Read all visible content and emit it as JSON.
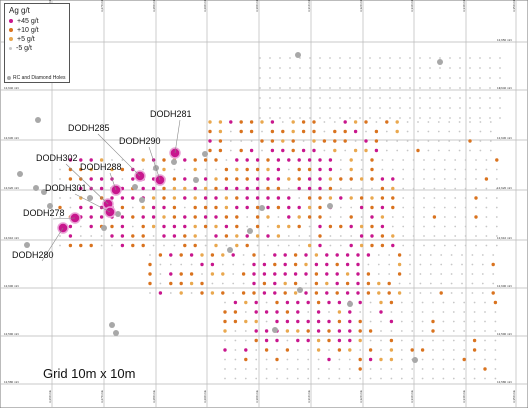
{
  "legend": {
    "title": "Ag g/t",
    "items": [
      {
        "label": "+45 g/t",
        "color": "#c8168d"
      },
      {
        "label": "+10 g/t",
        "color": "#d9731f"
      },
      {
        "label": "+5 g/t",
        "color": "#e9a84f"
      },
      {
        "label": "-5 g/t",
        "color": "#c7c7c7"
      }
    ],
    "holes_label": "RC and Diamond Holes",
    "holes_color": "#a8a8a8"
  },
  "grid_caption": "Grid 10m x 10m",
  "northing_labels": [
    "13,650 mN",
    "13,640 mN",
    "13,630 mN",
    "13,620 mN",
    "13,610 mN",
    "13,600 mN",
    "13,590 mN",
    "13,580 mN"
  ],
  "easting_labels": [
    "3,260 mE",
    "3,270 mE",
    "3,280 mE",
    "3,290 mE",
    "3,300 mE",
    "3,310 mE",
    "3,320 mE",
    "3,330 mE",
    "3,340 mE",
    "3,350 mE"
  ],
  "holes": [
    {
      "id": "DODH281"
    },
    {
      "id": "DODH285"
    },
    {
      "id": "DODH290"
    },
    {
      "id": "DODH288"
    },
    {
      "id": "DODH302"
    },
    {
      "id": "DODH301"
    },
    {
      "id": "DODH278"
    },
    {
      "id": "DODH280"
    }
  ]
}
